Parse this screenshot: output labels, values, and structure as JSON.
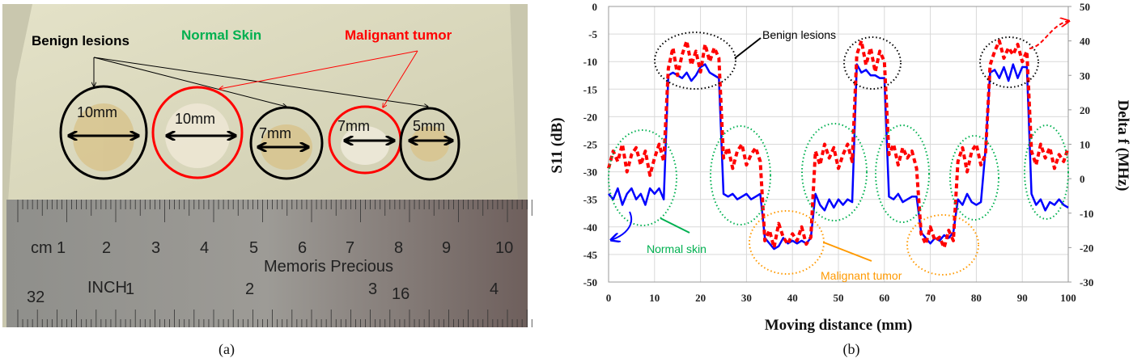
{
  "panel_a": {
    "caption": "(a)",
    "labels": {
      "benign": "Benign lesions",
      "normal": "Normal Skin",
      "malignant": "Malignant tumor"
    },
    "lesion_sizes": [
      "10mm",
      "10mm",
      "7mm",
      "7mm",
      "5mm"
    ],
    "lesion_types": [
      "benign",
      "malignant",
      "benign",
      "malignant",
      "benign"
    ],
    "ruler": {
      "cm_unit": "cm",
      "cm_numbers": [
        "1",
        "2",
        "3",
        "4",
        "5",
        "6",
        "7",
        "8",
        "9",
        "10"
      ],
      "brand": "Memoris Precious",
      "inch_unit": "INCH",
      "inch_numbers": [
        "1",
        "2",
        "3",
        "4"
      ],
      "small_marks": [
        "32",
        "16"
      ]
    },
    "colors": {
      "benign": "#000000",
      "malignant": "#ff0000",
      "normal": "#00b050"
    }
  },
  "chart_data": {
    "type": "line",
    "caption": "(b)",
    "xlabel": "Moving distance (mm)",
    "ylabel": "S11 (dB)",
    "y2label": "Delta f (MHz)",
    "xlim": [
      0,
      100
    ],
    "ylim": [
      -50,
      0
    ],
    "y2lim": [
      -30,
      50
    ],
    "xticks": [
      "0",
      "10",
      "20",
      "30",
      "40",
      "50",
      "60",
      "70",
      "80",
      "90",
      "100"
    ],
    "yticks": [
      "0",
      "-5",
      "-10",
      "-15",
      "-20",
      "-25",
      "-30",
      "-35",
      "-40",
      "-45",
      "-50"
    ],
    "y2ticks": [
      "50",
      "40",
      "30",
      "20",
      "10",
      "0",
      "-10",
      "-20",
      "-30"
    ],
    "grid": true,
    "x": [
      0,
      1,
      2,
      3,
      4,
      5,
      6,
      7,
      8,
      9,
      10,
      11,
      12,
      13,
      14,
      15,
      16,
      17,
      18,
      19,
      20,
      21,
      22,
      23,
      24,
      25,
      26,
      27,
      28,
      29,
      30,
      31,
      32,
      33,
      34,
      35,
      36,
      37,
      38,
      39,
      40,
      41,
      42,
      43,
      44,
      45,
      46,
      47,
      48,
      49,
      50,
      51,
      52,
      53,
      54,
      55,
      56,
      57,
      58,
      59,
      60,
      61,
      62,
      63,
      64,
      65,
      66,
      67,
      68,
      69,
      70,
      71,
      72,
      73,
      74,
      75,
      76,
      77,
      78,
      79,
      80,
      81,
      82,
      83,
      84,
      85,
      86,
      87,
      88,
      89,
      90,
      91,
      92,
      93,
      94,
      95,
      96,
      97,
      98,
      99,
      100
    ],
    "series": [
      {
        "axis": "left",
        "color": "#0000ff",
        "style": "solid",
        "values": [
          -34,
          -35,
          -33,
          -36,
          -34,
          -33,
          -35,
          -34,
          -36,
          -33,
          -34,
          -33,
          -35,
          -12.5,
          -12,
          -12.5,
          -13,
          -12,
          -13.5,
          -12.5,
          -11,
          -10.5,
          -12,
          -12.5,
          -13,
          -34,
          -34.5,
          -34,
          -35,
          -34.5,
          -34,
          -35,
          -34.5,
          -34,
          -42,
          -43,
          -44,
          -43.5,
          -42,
          -43,
          -42.5,
          -43,
          -42.5,
          -43,
          -42,
          -34,
          -36,
          -37,
          -35,
          -36.5,
          -35,
          -36,
          -35,
          -35.5,
          -10.5,
          -12,
          -11.5,
          -12.5,
          -12.5,
          -13,
          -13,
          -34.5,
          -35,
          -34,
          -35.5,
          -35,
          -34.5,
          -34.5,
          -41,
          -42,
          -43,
          -42,
          -42.5,
          -41.5,
          -42,
          -41,
          -35,
          -36,
          -34,
          -35.5,
          -36,
          -35.5,
          -26,
          -12,
          -11.5,
          -13,
          -11,
          -13.5,
          -10.5,
          -13,
          -11,
          -11,
          -34,
          -36,
          -35,
          -37,
          -35.5,
          -36,
          -35,
          -36,
          -36.5
        ]
      },
      {
        "axis": "right",
        "color": "#ff0000",
        "style": "dashed",
        "values": [
          3,
          8,
          5,
          10,
          2,
          7,
          9,
          4,
          8,
          1,
          6,
          10,
          5,
          32,
          38,
          30,
          36,
          40,
          33,
          37,
          31,
          39,
          34,
          38,
          35,
          6,
          9,
          3,
          8,
          10,
          4,
          7,
          9,
          5,
          -18,
          -15,
          -20,
          -13,
          -17,
          -19,
          -16,
          -18,
          -14,
          -19,
          -17,
          8,
          4,
          10,
          6,
          9,
          3,
          7,
          10,
          5,
          36,
          40,
          33,
          38,
          31,
          37,
          34,
          7,
          10,
          4,
          9,
          6,
          8,
          3,
          -16,
          -19,
          -14,
          -18,
          -17,
          -20,
          -15,
          -18,
          5,
          9,
          2,
          8,
          10,
          4,
          7,
          33,
          37,
          40,
          35,
          38,
          36,
          39,
          34,
          37,
          8,
          4,
          10,
          6,
          9,
          3,
          7,
          5,
          9
        ]
      }
    ],
    "annotations": {
      "benign": "Benign lesions",
      "normal": "Normal skin",
      "malignant": "Malignant tumor"
    },
    "annotation_colors": {
      "benign": "#000000",
      "normal": "#00b050",
      "malignant": "#ff9900"
    }
  }
}
